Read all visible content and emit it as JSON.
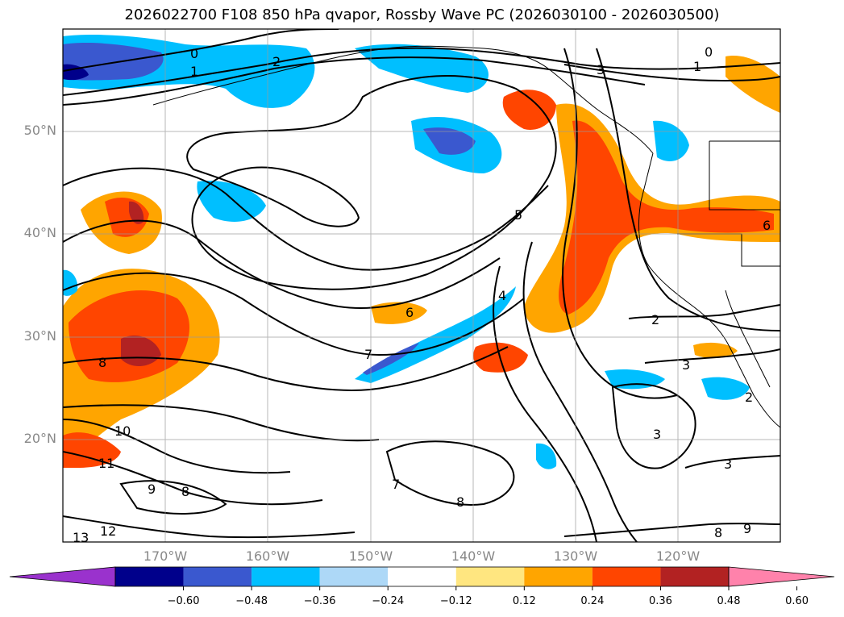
{
  "title": "2026022700 F108 850 hPa qvapor, Rossby Wave PC (2026030100 - 2026030500)",
  "lat_labels": [
    "50°N",
    "40°N",
    "30°N",
    "20°N"
  ],
  "lon_labels": [
    "170°W",
    "160°W",
    "150°W",
    "140°W",
    "130°W",
    "120°W"
  ],
  "colorbar": {
    "ticks": [
      "−0.60",
      "−0.48",
      "−0.36",
      "−0.24",
      "−0.12",
      "0.12",
      "0.24",
      "0.36",
      "0.48",
      "0.60"
    ],
    "colors": [
      "#9a32cd",
      "#00008b",
      "#3a58cf",
      "#00bfff",
      "#add8f7",
      "#ffffff",
      "#ffe680",
      "#ffa500",
      "#ff4500",
      "#b22222",
      "#ff82ab"
    ]
  },
  "contour_labels": [
    "0",
    "1",
    "2",
    "3",
    "0",
    "1",
    "5",
    "6",
    "4",
    "7",
    "8",
    "10",
    "11",
    "12",
    "13",
    "9",
    "8",
    "7",
    "8",
    "2",
    "3",
    "3",
    "2",
    "3",
    "9",
    "8",
    "6"
  ],
  "map": {
    "extent": {
      "lon_min": -180,
      "lon_max": -110,
      "lat_min": 10,
      "lat_max": 60
    },
    "gridlines": true
  }
}
